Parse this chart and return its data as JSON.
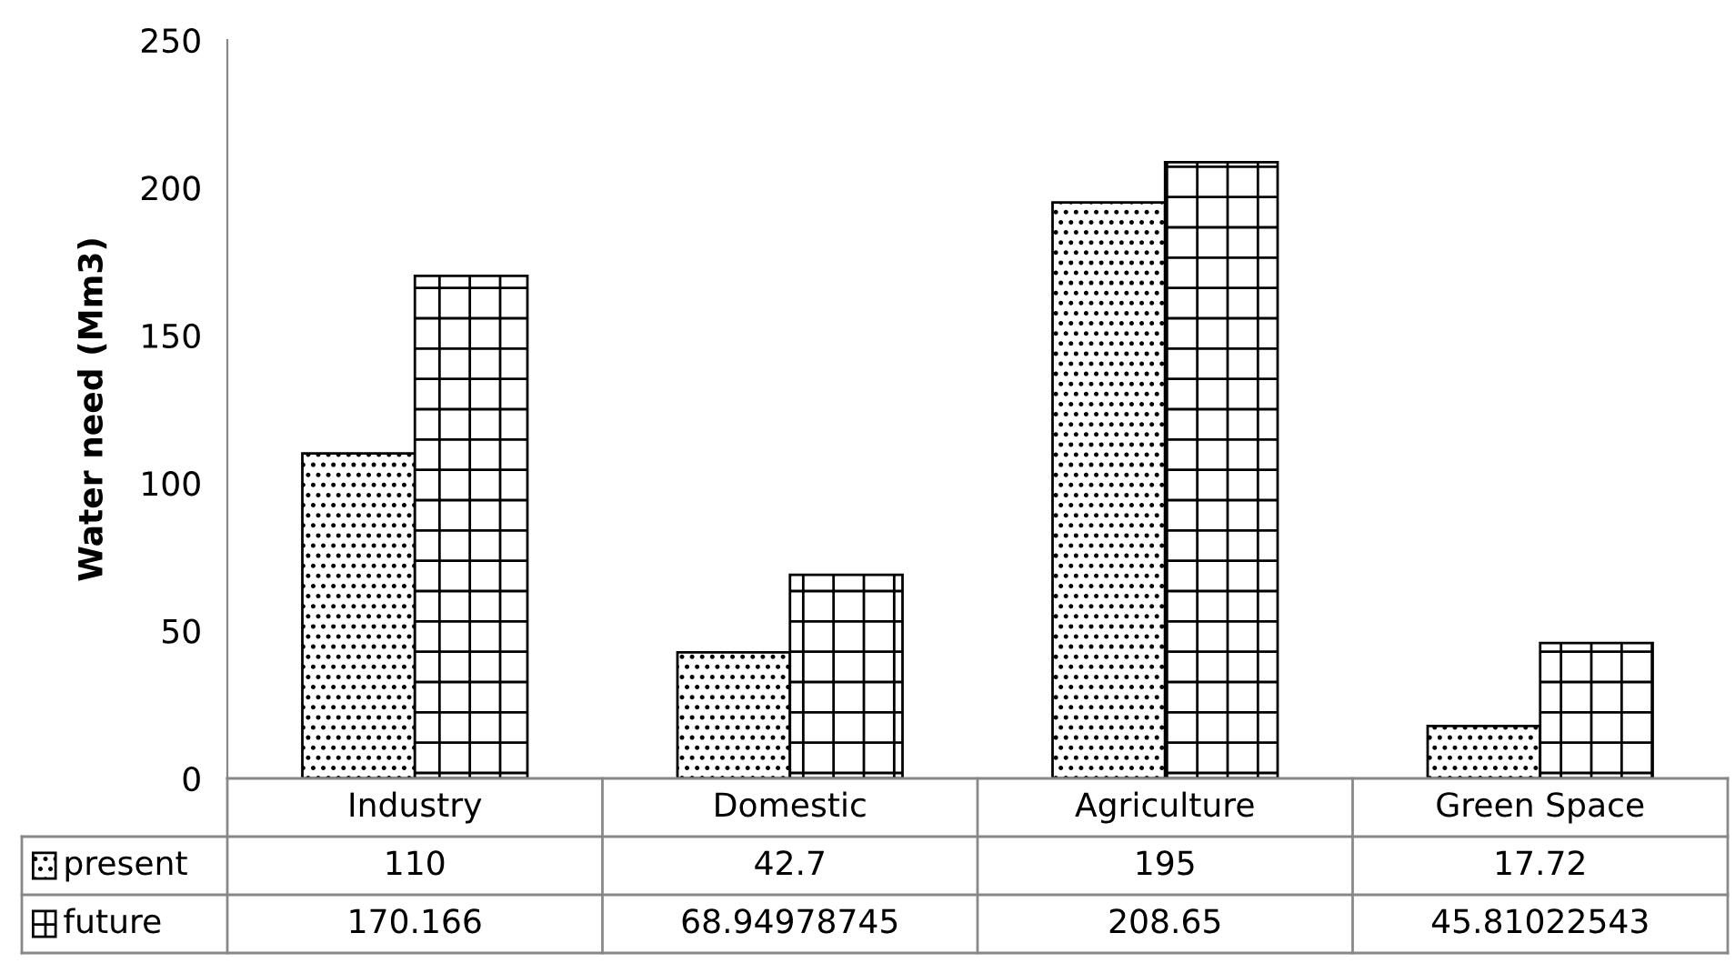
{
  "chart_data": {
    "type": "bar",
    "ylabel": "Water need (Mm3)",
    "categories": [
      "Industry",
      "Domestic",
      "Agriculture",
      "Green Space"
    ],
    "series": [
      {
        "name": "present",
        "color": "#000000",
        "values": [
          110,
          42.7,
          195,
          17.72
        ]
      },
      {
        "name": "future",
        "color": "#000000",
        "values": [
          170.166,
          68.94978745,
          208.65,
          45.81022543
        ]
      }
    ],
    "ylim": [
      0,
      250
    ],
    "yticks": [
      0,
      50,
      100,
      150,
      200,
      250
    ],
    "grid": false,
    "legend": "bottom",
    "data_labels": true
  }
}
